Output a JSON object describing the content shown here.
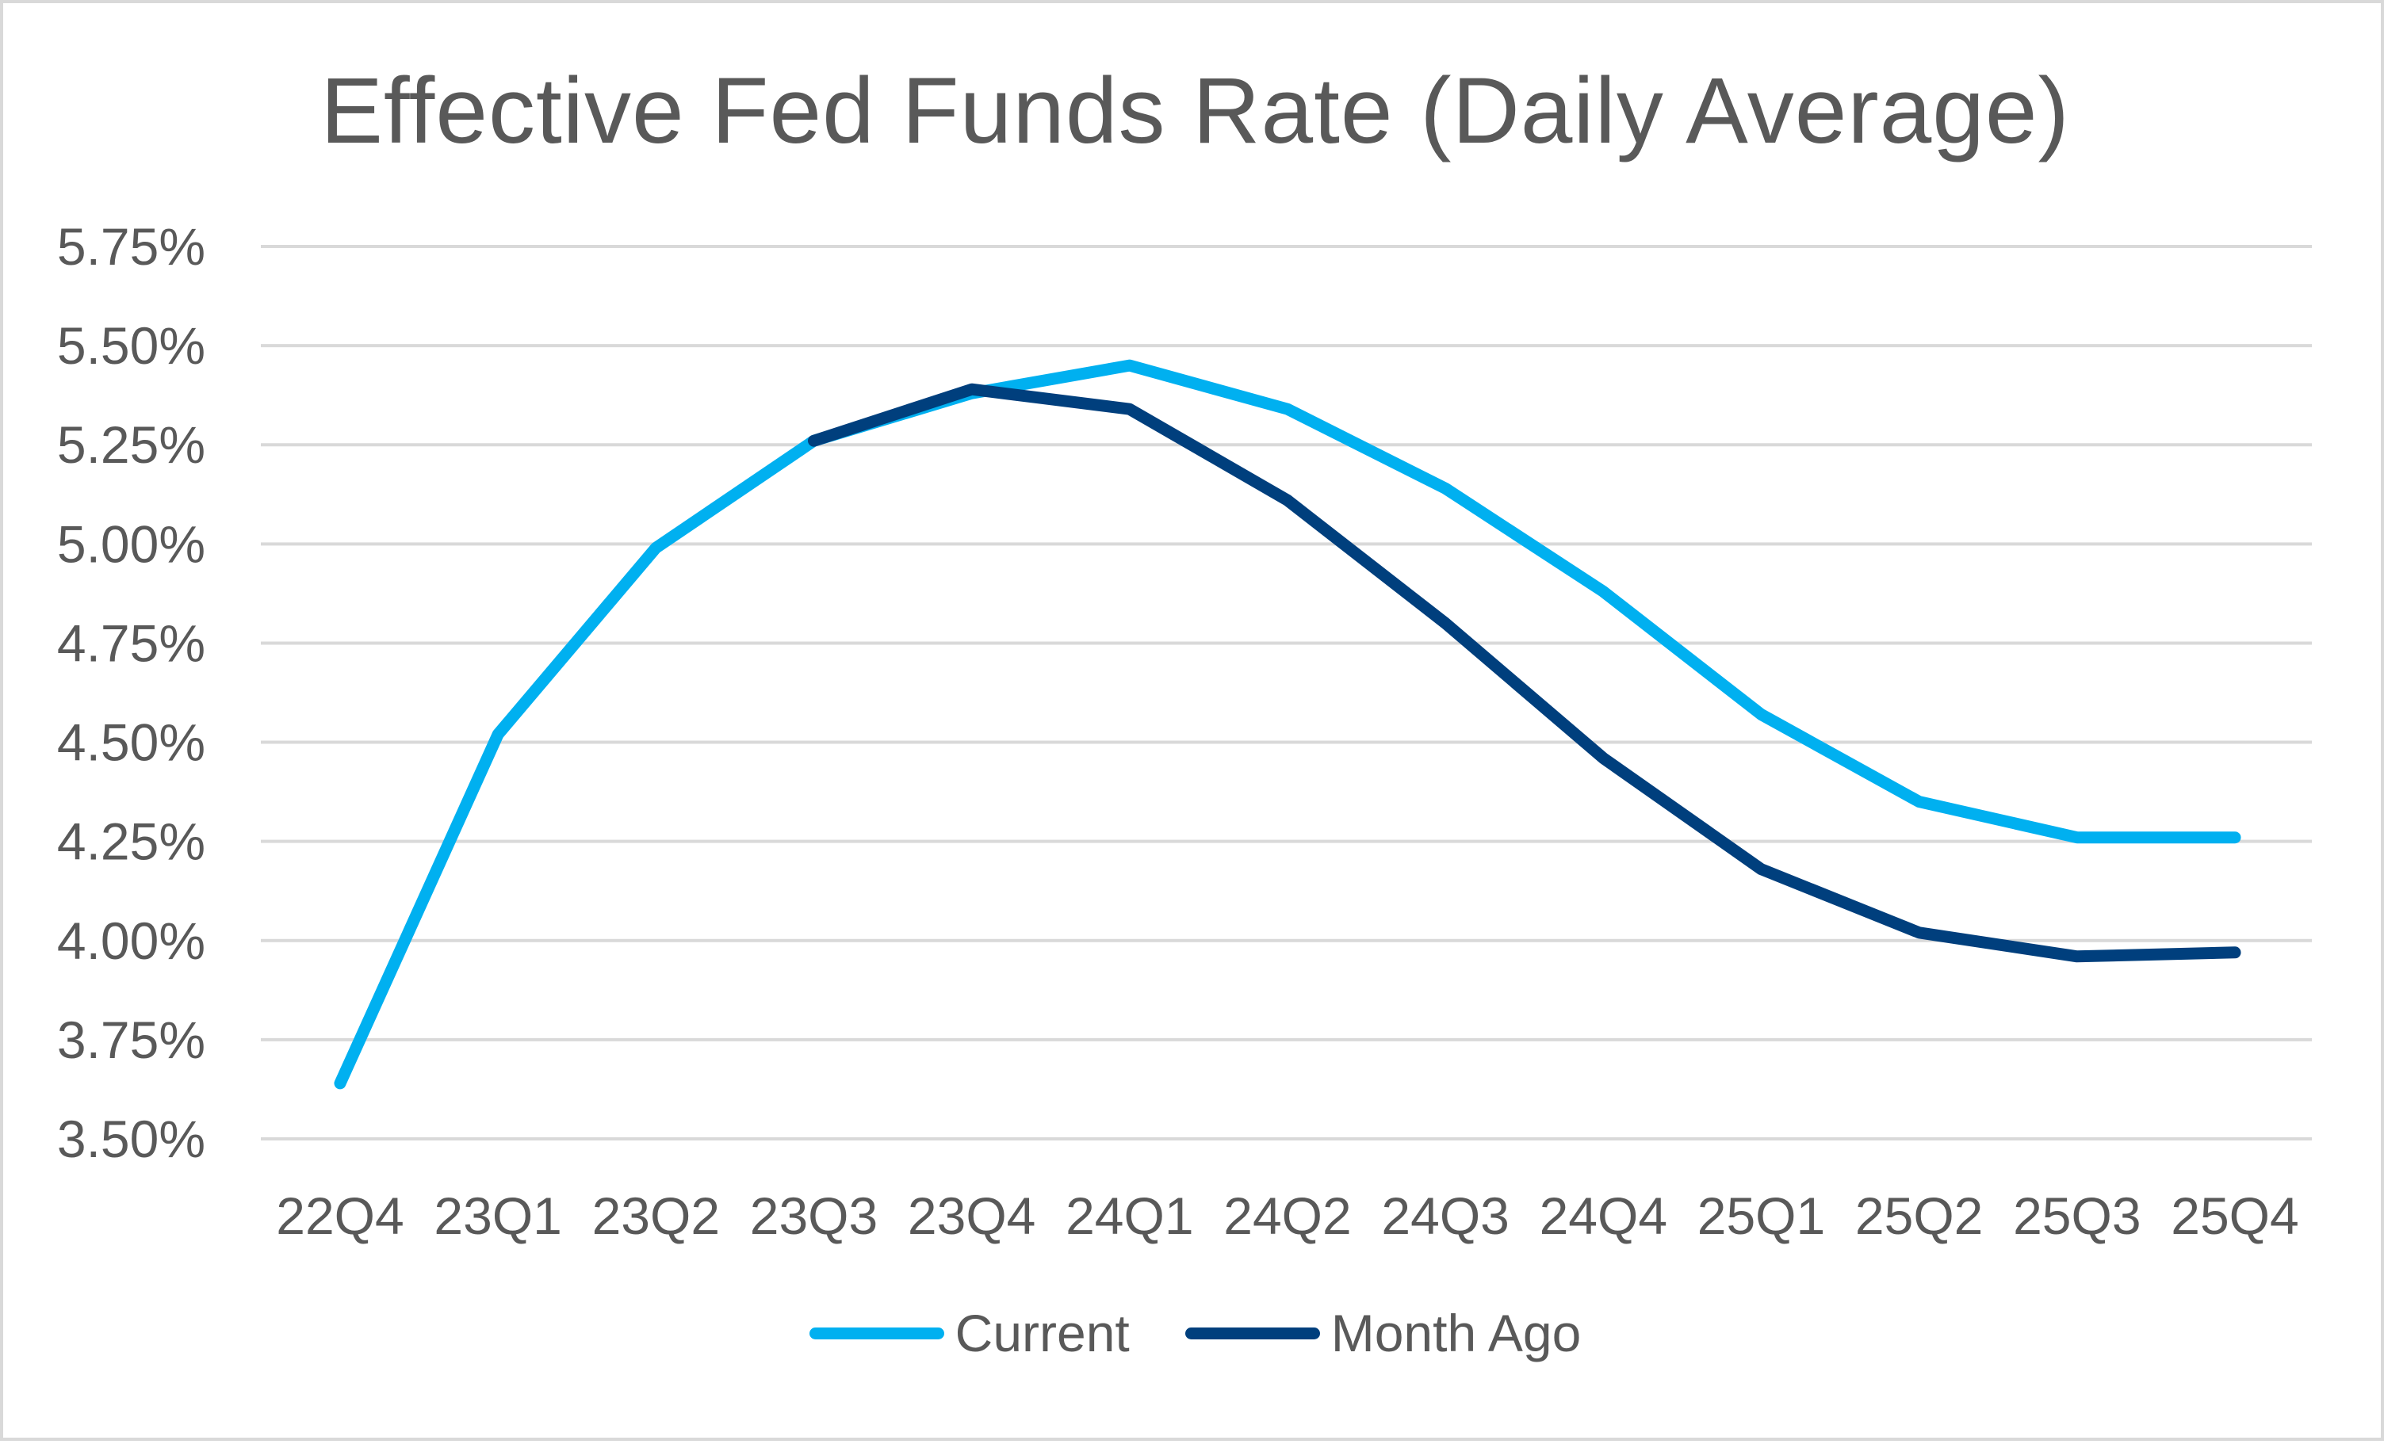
{
  "chart_data": {
    "type": "line",
    "title": "Effective Fed Funds Rate (Daily Average)",
    "xlabel": "",
    "ylabel": "",
    "categories": [
      "22Q4",
      "23Q1",
      "23Q2",
      "23Q3",
      "23Q4",
      "24Q1",
      "24Q2",
      "24Q3",
      "24Q4",
      "25Q1",
      "25Q2",
      "25Q3",
      "25Q4"
    ],
    "y_ticks": [
      3.5,
      3.75,
      4.0,
      4.25,
      4.5,
      4.75,
      5.0,
      5.25,
      5.5,
      5.75
    ],
    "y_tick_labels": [
      "3.50%",
      "3.75%",
      "4.00%",
      "4.25%",
      "4.50%",
      "4.75%",
      "5.00%",
      "5.25%",
      "5.50%",
      "5.75%"
    ],
    "ylim": [
      3.5,
      5.75
    ],
    "grid": true,
    "legend_position": "bottom",
    "series": [
      {
        "name": "Current",
        "color": "#00b0f0",
        "values": [
          3.64,
          4.52,
          4.99,
          5.26,
          5.38,
          5.45,
          5.34,
          5.14,
          4.88,
          4.57,
          4.35,
          4.26,
          4.26
        ]
      },
      {
        "name": "Month Ago",
        "color": "#003f7d",
        "values": [
          null,
          null,
          null,
          5.26,
          5.39,
          5.34,
          5.11,
          4.8,
          4.46,
          4.18,
          4.02,
          3.96,
          3.97
        ]
      }
    ]
  }
}
